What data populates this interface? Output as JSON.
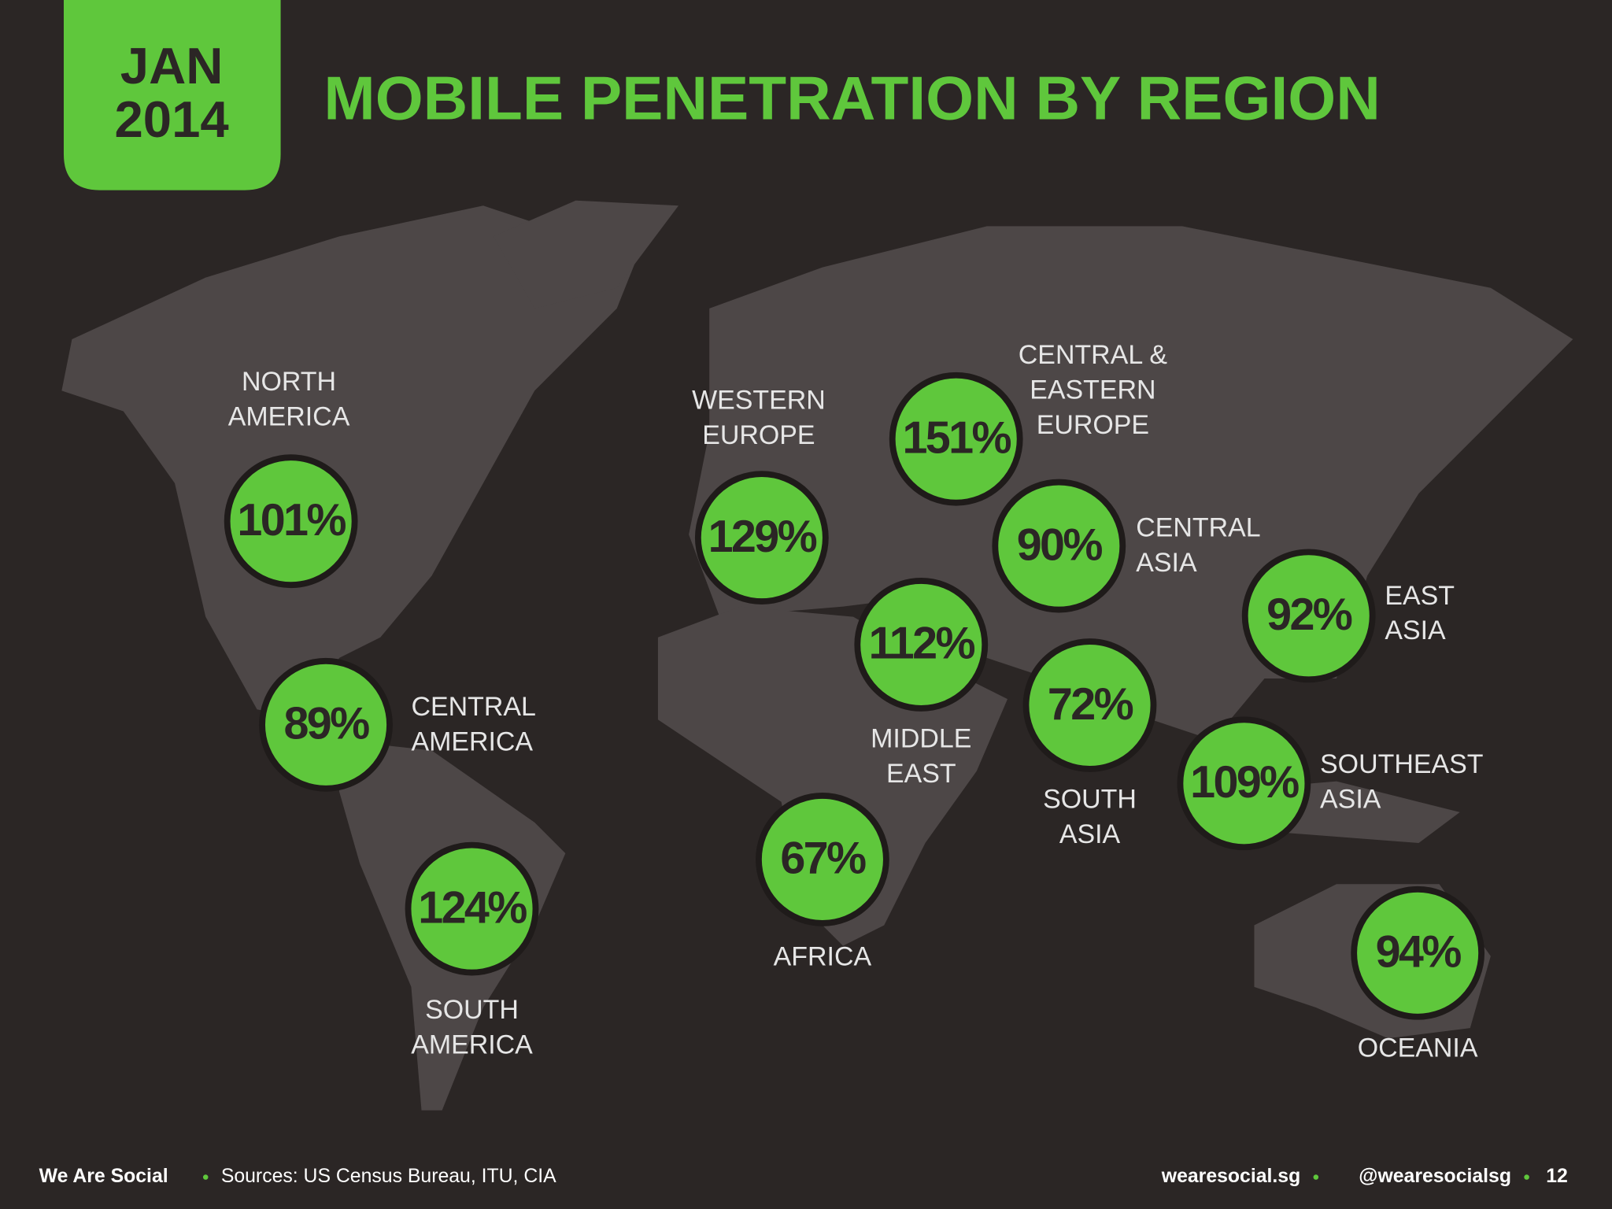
{
  "header": {
    "date_lines": [
      "JAN",
      "2014"
    ],
    "title": "MOBILE PENETRATION BY REGION"
  },
  "regions": [
    {
      "name_lines": [
        "NORTH",
        "AMERICA"
      ],
      "value": 101,
      "value_label": "101%"
    },
    {
      "name_lines": [
        "CENTRAL",
        "AMERICA"
      ],
      "value": 89,
      "value_label": "89%"
    },
    {
      "name_lines": [
        "SOUTH",
        "AMERICA"
      ],
      "value": 124,
      "value_label": "124%"
    },
    {
      "name_lines": [
        "WESTERN",
        "EUROPE"
      ],
      "value": 129,
      "value_label": "129%"
    },
    {
      "name_lines": [
        "CENTRAL &",
        "EASTERN",
        "EUROPE"
      ],
      "value": 151,
      "value_label": "151%"
    },
    {
      "name_lines": [
        "CENTRAL",
        "ASIA"
      ],
      "value": 90,
      "value_label": "90%"
    },
    {
      "name_lines": [
        "MIDDLE",
        "EAST"
      ],
      "value": 112,
      "value_label": "112%"
    },
    {
      "name_lines": [
        "SOUTH",
        "ASIA"
      ],
      "value": 72,
      "value_label": "72%"
    },
    {
      "name_lines": [
        "EAST",
        "ASIA"
      ],
      "value": 92,
      "value_label": "92%"
    },
    {
      "name_lines": [
        "SOUTHEAST",
        "ASIA"
      ],
      "value": 109,
      "value_label": "109%"
    },
    {
      "name_lines": [
        "AFRICA"
      ],
      "value": 67,
      "value_label": "67%"
    },
    {
      "name_lines": [
        "OCEANIA"
      ],
      "value": 94,
      "value_label": "94%"
    }
  ],
  "footer": {
    "brand": "We Are Social",
    "sources": "Sources: US Census Bureau, ITU, CIA",
    "website": "wearesocial.sg",
    "handle": "@wearesocialsg",
    "page": "12"
  }
}
